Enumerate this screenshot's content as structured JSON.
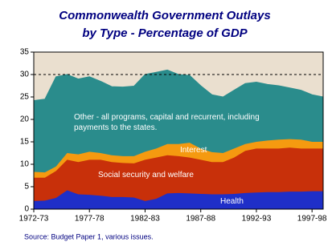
{
  "chart_data": {
    "type": "stacked_area",
    "title": [
      "Commonwealth Government Outlays",
      "by Type - Percentage of GDP"
    ],
    "source": "Source:  Budget Paper 1, various issues.",
    "x": [
      1972,
      1973,
      1974,
      1975,
      1976,
      1977,
      1978,
      1979,
      1980,
      1981,
      1982,
      1983,
      1984,
      1985,
      1986,
      1987,
      1988,
      1989,
      1990,
      1991,
      1992,
      1993,
      1994,
      1995,
      1996,
      1997,
      1998
    ],
    "xlim": [
      1972,
      1998
    ],
    "xticks": [
      {
        "value": 1972,
        "label": "1972-73"
      },
      {
        "value": 1977,
        "label": "1977-78"
      },
      {
        "value": 1982,
        "label": "1982-83"
      },
      {
        "value": 1987,
        "label": "1987-88"
      },
      {
        "value": 1992,
        "label": "1992-93"
      },
      {
        "value": 1997,
        "label": "1997-98"
      }
    ],
    "ylim": [
      0,
      35
    ],
    "yticks": [
      0,
      5,
      10,
      15,
      20,
      25,
      30,
      35
    ],
    "reference_line": 30,
    "series": [
      {
        "name": "Health",
        "color": "#1f2fc8",
        "values": [
          1.8,
          1.9,
          2.5,
          4.2,
          3.3,
          3.2,
          3.0,
          2.7,
          2.7,
          2.6,
          1.8,
          2.3,
          3.5,
          3.6,
          3.5,
          3.4,
          3.3,
          3.3,
          3.4,
          3.6,
          3.7,
          3.8,
          3.8,
          3.9,
          3.9,
          4.0,
          4.0
        ]
      },
      {
        "name": "Social security and welfare",
        "color": "#c8300a",
        "values": [
          5.2,
          5.1,
          6.0,
          6.8,
          7.2,
          7.8,
          8.0,
          7.8,
          7.6,
          7.6,
          9.2,
          9.2,
          8.5,
          8.2,
          8.0,
          7.6,
          7.2,
          7.2,
          8.1,
          9.4,
          9.8,
          9.7,
          9.7,
          9.8,
          9.6,
          9.5,
          9.5
        ]
      },
      {
        "name": "Interest",
        "color": "#f59a10",
        "values": [
          1.3,
          1.2,
          1.0,
          1.5,
          1.7,
          1.8,
          1.5,
          1.5,
          1.5,
          1.6,
          1.8,
          2.0,
          2.5,
          2.7,
          3.3,
          2.5,
          2.2,
          2.0,
          2.0,
          1.5,
          1.5,
          1.8,
          2.0,
          1.9,
          2.0,
          1.5,
          1.5
        ]
      },
      {
        "name": "Other - all programs, capital and recurrent, including payments to the states.",
        "color": "#2a8c8c",
        "values": [
          15.9,
          16.3,
          20.0,
          17.5,
          16.8,
          16.7,
          16.0,
          15.3,
          15.4,
          15.6,
          17.2,
          17.0,
          16.5,
          15.5,
          15.0,
          14.0,
          12.8,
          12.5,
          13.0,
          13.5,
          13.3,
          12.5,
          12.0,
          11.4,
          11.0,
          10.5,
          10.0
        ]
      }
    ]
  }
}
